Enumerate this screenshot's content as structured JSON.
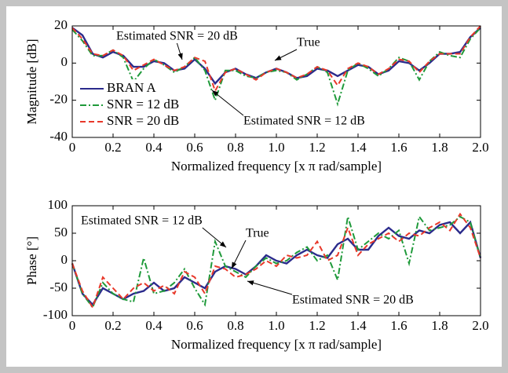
{
  "chart_data": [
    {
      "type": "line",
      "ylabel": "Magnitude [dB]",
      "xlabel": "Normalized frequency [x π rad/sample]",
      "x": [
        0,
        0.05,
        0.1,
        0.15,
        0.2,
        0.25,
        0.3,
        0.35,
        0.4,
        0.45,
        0.5,
        0.55,
        0.6,
        0.65,
        0.7,
        0.75,
        0.8,
        0.85,
        0.9,
        0.95,
        1,
        1.05,
        1.1,
        1.15,
        1.2,
        1.25,
        1.3,
        1.35,
        1.4,
        1.45,
        1.5,
        1.55,
        1.6,
        1.65,
        1.7,
        1.75,
        1.8,
        1.85,
        1.9,
        1.95,
        2
      ],
      "series": [
        {
          "name": "BRAN A",
          "color": "#2b2b8c",
          "linestyle": "solid",
          "values": [
            19,
            15,
            5,
            3,
            6,
            4,
            -2,
            -2,
            1,
            0,
            -4,
            -3,
            2,
            -3,
            -11,
            -5,
            -3,
            -6,
            -8,
            -5,
            -3,
            -5,
            -8,
            -7,
            -3,
            -4,
            -7,
            -4,
            -1,
            -2,
            -6,
            -4,
            1,
            0,
            -4,
            0,
            5,
            5,
            6,
            14,
            19
          ]
        },
        {
          "name": "SNR = 12 dB",
          "color": "#1f9a3a",
          "linestyle": "dashdot",
          "values": [
            18,
            12,
            4,
            4,
            7,
            3,
            -10,
            -3,
            2,
            -1,
            -5,
            -2,
            3,
            -4,
            -20,
            -4,
            -4,
            -7,
            -8,
            -5,
            -4,
            -5,
            -9,
            -6,
            -2,
            -5,
            -22,
            -4,
            0,
            -3,
            -7,
            -3,
            3,
            1,
            -9,
            1,
            6,
            4,
            3,
            13,
            19
          ]
        },
        {
          "name": "SNR = 20 dB",
          "color": "#e8382a",
          "linestyle": "dashed",
          "values": [
            19,
            13,
            5,
            4,
            7,
            4,
            -4,
            -1,
            2,
            -1,
            -4,
            -2,
            3,
            1,
            -15,
            -5,
            -3,
            -6,
            -9,
            -5,
            -3,
            -5,
            -8,
            -6,
            -2,
            -4,
            -12,
            -3,
            0,
            -2,
            -6,
            -3,
            2,
            1,
            -5,
            1,
            5,
            5,
            5,
            14,
            20
          ]
        }
      ],
      "xlim": [
        0,
        2
      ],
      "xticks": [
        0,
        0.2,
        0.4,
        0.6,
        0.8,
        {
          "value": 1,
          "label": "1.0"
        },
        1.2,
        1.4,
        1.6,
        1.8,
        {
          "value": 2,
          "label": "2.0"
        }
      ],
      "ylim": [
        -40,
        20
      ],
      "yticks": [
        -40,
        -20,
        0,
        20
      ],
      "legend": "lower left",
      "annotations": [
        {
          "text": "Estimated SNR = 20 dB"
        },
        {
          "text": "True"
        },
        {
          "text": "Estimated SNR = 12 dB"
        }
      ]
    },
    {
      "type": "line",
      "ylabel": "Phase [°]",
      "xlabel": "Normalized frequency [x π rad/sample]",
      "x": [
        0,
        0.05,
        0.1,
        0.15,
        0.2,
        0.25,
        0.3,
        0.35,
        0.4,
        0.45,
        0.5,
        0.55,
        0.6,
        0.65,
        0.7,
        0.75,
        0.8,
        0.85,
        0.9,
        0.95,
        1,
        1.05,
        1.1,
        1.15,
        1.2,
        1.25,
        1.3,
        1.35,
        1.4,
        1.45,
        1.5,
        1.55,
        1.6,
        1.65,
        1.7,
        1.75,
        1.8,
        1.85,
        1.9,
        1.95,
        2
      ],
      "series": [
        {
          "color": "#2b2b8c",
          "linestyle": "solid",
          "values": [
            -5,
            -60,
            -80,
            -50,
            -60,
            -70,
            -60,
            -55,
            -40,
            -55,
            -50,
            -30,
            -40,
            -50,
            -20,
            -10,
            -15,
            -25,
            -10,
            10,
            0,
            -5,
            10,
            20,
            10,
            5,
            30,
            40,
            20,
            20,
            45,
            60,
            45,
            40,
            55,
            50,
            65,
            70,
            50,
            70,
            5
          ]
        },
        {
          "color": "#1f9a3a",
          "linestyle": "dashdot",
          "values": [
            -5,
            -60,
            -85,
            -40,
            -60,
            -70,
            -75,
            5,
            -60,
            -55,
            -40,
            -15,
            -50,
            -80,
            35,
            -10,
            -20,
            -30,
            -10,
            5,
            -5,
            0,
            15,
            25,
            0,
            10,
            -35,
            80,
            20,
            35,
            50,
            40,
            55,
            -5,
            80,
            55,
            60,
            65,
            80,
            70,
            5
          ]
        },
        {
          "color": "#e8382a",
          "linestyle": "dashed",
          "values": [
            -5,
            -55,
            -85,
            -30,
            -50,
            -70,
            -50,
            -40,
            -55,
            -45,
            -60,
            -20,
            -30,
            -60,
            -10,
            -15,
            -30,
            -25,
            -15,
            0,
            -10,
            10,
            5,
            10,
            35,
            0,
            10,
            60,
            10,
            30,
            40,
            50,
            35,
            50,
            45,
            60,
            70,
            55,
            85,
            60,
            5
          ]
        }
      ],
      "xlim": [
        0,
        2
      ],
      "xticks": [
        0,
        0.2,
        0.4,
        0.6,
        0.8,
        {
          "value": 1,
          "label": "1.0"
        },
        1.2,
        1.4,
        1.6,
        1.8,
        {
          "value": 2,
          "label": "2.0"
        }
      ],
      "ylim": [
        -100,
        100
      ],
      "yticks": [
        -100,
        -50,
        0,
        50,
        100
      ],
      "annotations": [
        {
          "text": "Estimated SNR = 12 dB"
        },
        {
          "text": "True"
        },
        {
          "text": "Estimated SNR = 20 dB"
        }
      ]
    }
  ]
}
